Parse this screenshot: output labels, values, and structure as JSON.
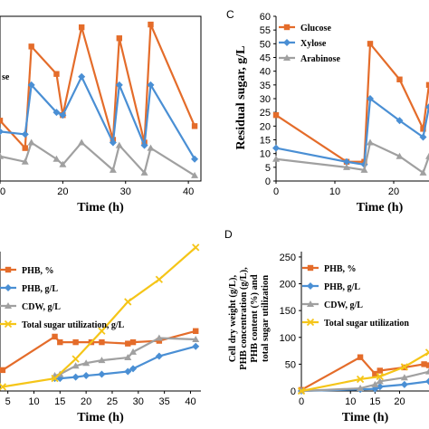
{
  "colors": {
    "orange": "#E46C2A",
    "blue": "#4A8FD4",
    "gray": "#A0A0A0",
    "yellow": "#F5C518"
  },
  "chart_data": [
    {
      "id": "top-left",
      "type": "line",
      "xlabel": "Time (h)",
      "xticks": [
        "10",
        "20",
        "30",
        "40"
      ],
      "xlim": [
        10,
        42
      ],
      "ylim": [
        0,
        60
      ],
      "legend_fragment": "se",
      "series": [
        {
          "color_key": "orange",
          "marker": "square",
          "x": [
            10,
            14,
            15,
            19,
            20,
            23,
            28,
            29,
            33,
            34,
            41
          ],
          "y": [
            22,
            12,
            49,
            39,
            24,
            56,
            15,
            52,
            14,
            57,
            20
          ]
        },
        {
          "color_key": "blue",
          "marker": "diamond",
          "x": [
            10,
            14,
            15,
            19,
            20,
            23,
            28,
            29,
            33,
            34,
            41
          ],
          "y": [
            18,
            17,
            35,
            25,
            24,
            38,
            14,
            35,
            13,
            35,
            8
          ]
        },
        {
          "color_key": "gray",
          "marker": "triangle",
          "x": [
            10,
            14,
            15,
            19,
            20,
            23,
            28,
            29,
            33,
            34,
            41
          ],
          "y": [
            9,
            7,
            14,
            8,
            6,
            14,
            4,
            13,
            3,
            12,
            2
          ]
        }
      ]
    },
    {
      "id": "top-right",
      "type": "line",
      "panel_label": "C",
      "ylabel": "Residual sugar, g/L",
      "xlabel": "Time (h)",
      "xticks": [
        "0",
        "10",
        "20"
      ],
      "yticks": [
        "0",
        "5",
        "10",
        "15",
        "20",
        "25",
        "30",
        "35",
        "40",
        "45",
        "50",
        "55",
        "60"
      ],
      "xlim": [
        0,
        26
      ],
      "ylim": [
        0,
        60
      ],
      "legend": [
        "Glucose",
        "Xylose",
        "Arabinose"
      ],
      "series": [
        {
          "name": "Glucose",
          "color_key": "orange",
          "marker": "square",
          "x": [
            0,
            12,
            15,
            16,
            21,
            25,
            26
          ],
          "y": [
            24,
            7,
            7,
            50,
            37,
            19,
            35
          ]
        },
        {
          "name": "Xylose",
          "color_key": "blue",
          "marker": "diamond",
          "x": [
            0,
            12,
            15,
            16,
            21,
            25,
            26
          ],
          "y": [
            12,
            7,
            6,
            30,
            22,
            16,
            27
          ]
        },
        {
          "name": "Arabinose",
          "color_key": "gray",
          "marker": "triangle",
          "x": [
            0,
            12,
            15,
            16,
            21,
            25,
            26
          ],
          "y": [
            8,
            5,
            4,
            14,
            9,
            3,
            9
          ]
        }
      ]
    },
    {
      "id": "bottom-left",
      "type": "line",
      "xlabel": "Time (h)",
      "xticks": [
        "5",
        "10",
        "15",
        "20",
        "25",
        "30",
        "35",
        "40"
      ],
      "xlim": [
        3.5,
        42
      ],
      "ylim": [
        0,
        100
      ],
      "legend": [
        "PHB, %",
        "PHB, g/L",
        "CDW, g/L",
        "Total sugar utilization, g/L"
      ],
      "series": [
        {
          "name": "PHB, %",
          "color_key": "orange",
          "marker": "square",
          "x": [
            4,
            14,
            15,
            18,
            21,
            23,
            28,
            29,
            34,
            41
          ],
          "y": [
            15,
            39,
            35,
            35,
            35,
            35,
            34,
            35,
            36,
            43
          ]
        },
        {
          "name": "PHB, g/L",
          "color_key": "blue",
          "marker": "diamond",
          "x": [
            14,
            15,
            18,
            20,
            23,
            28,
            29,
            34,
            41
          ],
          "y": [
            9,
            9,
            10,
            11,
            12,
            14,
            16,
            25,
            32
          ]
        },
        {
          "name": "CDW, g/L",
          "color_key": "gray",
          "marker": "triangle",
          "x": [
            14,
            15,
            18,
            20,
            23,
            28,
            29,
            34,
            41
          ],
          "y": [
            11,
            12,
            18,
            20,
            22,
            24,
            28,
            38,
            37
          ]
        },
        {
          "name": "Total sugar utilization, g/L",
          "color_key": "yellow",
          "marker": "cross",
          "x": [
            4,
            14,
            18,
            23,
            28,
            34,
            41
          ],
          "y": [
            3,
            9,
            23,
            43,
            64,
            80,
            103
          ]
        }
      ]
    },
    {
      "id": "bottom-right",
      "type": "line",
      "panel_label": "D",
      "ylabel_lines": [
        "Cell dry weight (g/L),",
        "PHB concentration (g/L),",
        "PHB content (%) and",
        "total sugar utilization"
      ],
      "xlabel": "Time (h)",
      "xticks": [
        "0",
        "10",
        "15",
        "20"
      ],
      "yticks": [
        "0",
        "50",
        "100",
        "150",
        "200",
        "250"
      ],
      "xlim": [
        0,
        26
      ],
      "ylim": [
        0,
        260
      ],
      "legend": [
        "PHB, %",
        "PHB, g/L",
        "CDW, g/L",
        "Total sugar utilization"
      ],
      "series": [
        {
          "name": "PHB, %",
          "color_key": "orange",
          "marker": "square",
          "x": [
            0,
            12,
            15,
            16,
            21,
            25,
            26
          ],
          "y": [
            2,
            63,
            32,
            38,
            44,
            50,
            48
          ]
        },
        {
          "name": "PHB, g/L",
          "color_key": "blue",
          "marker": "diamond",
          "x": [
            0,
            12,
            15,
            16,
            21,
            26
          ],
          "y": [
            0,
            3,
            4,
            8,
            12,
            18
          ]
        },
        {
          "name": "CDW, g/L",
          "color_key": "gray",
          "marker": "triangle",
          "x": [
            0,
            12,
            15,
            16,
            21,
            26
          ],
          "y": [
            0,
            5,
            12,
            18,
            25,
            36
          ]
        },
        {
          "name": "Total sugar utilization",
          "color_key": "yellow",
          "marker": "cross",
          "x": [
            0,
            12,
            16,
            21,
            26
          ],
          "y": [
            0,
            22,
            27,
            45,
            72
          ]
        }
      ]
    }
  ]
}
